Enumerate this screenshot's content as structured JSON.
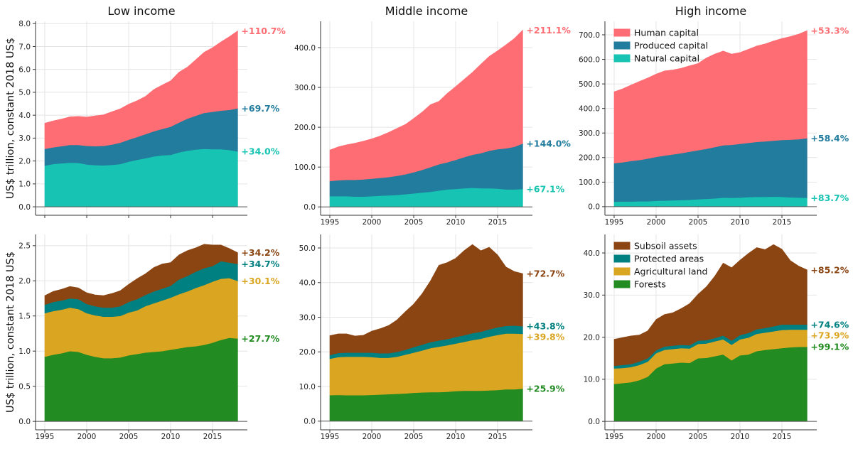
{
  "chart_data": [
    {
      "type": "area",
      "stacked": true,
      "title": "Low income",
      "ylabel": "US$ trillion, constant 2018 US$",
      "x": [
        1995,
        1996,
        1997,
        1998,
        1999,
        2000,
        2001,
        2002,
        2003,
        2004,
        2005,
        2006,
        2007,
        2008,
        2009,
        2010,
        2011,
        2012,
        2013,
        2014,
        2015,
        2016,
        2017,
        2018
      ],
      "xticks": [
        1995,
        2000,
        2005,
        2010,
        2015
      ],
      "show_xtick_labels": false,
      "yticks": [
        0,
        1,
        2,
        3,
        4,
        5,
        6,
        7,
        8
      ],
      "ytick_labels": [
        "0.0",
        "1.0",
        "2.0",
        "3.0",
        "4.0",
        "5.0",
        "6.0",
        "7.0",
        "8.0"
      ],
      "ylim": [
        -0.37,
        8.1
      ],
      "grid": true,
      "legend": null,
      "series": [
        {
          "name": "Natural capital",
          "color": "#17c3b2",
          "end_label": "+34.0%",
          "values": [
            1.8,
            1.87,
            1.9,
            1.93,
            1.92,
            1.85,
            1.82,
            1.81,
            1.83,
            1.87,
            1.97,
            2.05,
            2.12,
            2.2,
            2.25,
            2.27,
            2.38,
            2.45,
            2.5,
            2.53,
            2.52,
            2.52,
            2.48,
            2.42
          ]
        },
        {
          "name": "Produced capital",
          "color": "#227c9d",
          "end_label": "+69.7%",
          "values": [
            0.73,
            0.73,
            0.75,
            0.77,
            0.78,
            0.81,
            0.83,
            0.85,
            0.89,
            0.93,
            0.96,
            1.0,
            1.05,
            1.1,
            1.15,
            1.23,
            1.3,
            1.4,
            1.48,
            1.57,
            1.63,
            1.68,
            1.75,
            1.88
          ]
        },
        {
          "name": "Human capital",
          "color": "#fe6d73",
          "end_label": "+110.7%",
          "values": [
            1.12,
            1.15,
            1.18,
            1.23,
            1.25,
            1.26,
            1.32,
            1.36,
            1.43,
            1.48,
            1.55,
            1.58,
            1.65,
            1.82,
            1.92,
            2.0,
            2.2,
            2.25,
            2.44,
            2.65,
            2.8,
            3.0,
            3.2,
            3.38
          ]
        }
      ]
    },
    {
      "type": "area",
      "stacked": true,
      "title": "Middle income",
      "x": [
        1995,
        1996,
        1997,
        1998,
        1999,
        2000,
        2001,
        2002,
        2003,
        2004,
        2005,
        2006,
        2007,
        2008,
        2009,
        2010,
        2011,
        2012,
        2013,
        2014,
        2015,
        2016,
        2017,
        2018
      ],
      "xticks": [
        1995,
        2000,
        2005,
        2010,
        2015
      ],
      "show_xtick_labels": true,
      "yticks": [
        0,
        100,
        200,
        300,
        400
      ],
      "ytick_labels": [
        "0.0",
        "100.0",
        "200.0",
        "300.0",
        "400.0"
      ],
      "ylim": [
        -21,
        466
      ],
      "grid": true,
      "legend": null,
      "series": [
        {
          "name": "Natural capital",
          "color": "#17c3b2",
          "end_label": "+67.1%",
          "values": [
            27,
            27,
            27,
            26,
            26,
            27,
            28,
            29,
            30,
            32,
            34,
            36,
            38,
            41,
            44,
            45,
            47,
            48,
            47,
            47,
            46,
            44,
            44,
            45
          ]
        },
        {
          "name": "Produced capital",
          "color": "#227c9d",
          "end_label": "+144.0%",
          "values": [
            38,
            40,
            41,
            42,
            43,
            44,
            45,
            46,
            48,
            50,
            53,
            57,
            62,
            66,
            68,
            73,
            78,
            83,
            88,
            94,
            99,
            103,
            107,
            114
          ]
        },
        {
          "name": "Human capital",
          "color": "#fe6d73",
          "end_label": "+211.1%",
          "values": [
            78,
            84,
            88,
            92,
            96,
            100,
            105,
            112,
            119,
            125,
            135,
            145,
            157,
            158,
            173,
            184,
            195,
            207,
            223,
            237,
            247,
            260,
            272,
            285
          ]
        }
      ]
    },
    {
      "type": "area",
      "stacked": true,
      "title": "High income",
      "x": [
        1995,
        1996,
        1997,
        1998,
        1999,
        2000,
        2001,
        2002,
        2003,
        2004,
        2005,
        2006,
        2007,
        2008,
        2009,
        2010,
        2011,
        2012,
        2013,
        2014,
        2015,
        2016,
        2017,
        2018
      ],
      "xticks": [
        1995,
        2000,
        2005,
        2010,
        2015
      ],
      "show_xtick_labels": true,
      "yticks": [
        0,
        100,
        200,
        300,
        400,
        500,
        600,
        700
      ],
      "ytick_labels": [
        "0.0",
        "100.0",
        "200.0",
        "300.0",
        "400.0",
        "500.0",
        "600.0",
        "700.0"
      ],
      "ylim": [
        -35,
        755
      ],
      "grid": true,
      "legend": "upper-left",
      "series": [
        {
          "name": "Natural capital",
          "color": "#17c3b2",
          "end_label": "+83.7%",
          "values": [
            20,
            21,
            21,
            22,
            22,
            24,
            25,
            26,
            27,
            28,
            30,
            32,
            34,
            37,
            36,
            37,
            39,
            40,
            40,
            41,
            40,
            38,
            37,
            36
          ]
        },
        {
          "name": "Produced capital",
          "color": "#227c9d",
          "end_label": "+58.4%",
          "values": [
            157,
            160,
            165,
            168,
            174,
            179,
            183,
            187,
            191,
            196,
            200,
            204,
            209,
            213,
            216,
            219,
            221,
            224,
            226,
            228,
            232,
            235,
            238,
            243
          ]
        },
        {
          "name": "Human capital",
          "color": "#fe6d73",
          "end_label": "+53.3%",
          "values": [
            291,
            299,
            309,
            320,
            328,
            337,
            345,
            344,
            346,
            350,
            353,
            370,
            379,
            384,
            370,
            372,
            381,
            391,
            397,
            406,
            413,
            420,
            428,
            438
          ]
        }
      ]
    },
    {
      "type": "area",
      "stacked": true,
      "title": "",
      "ylabel": "US$ trillion, constant 2018 US$",
      "x": [
        1995,
        1996,
        1997,
        1998,
        1999,
        2000,
        2001,
        2002,
        2003,
        2004,
        2005,
        2006,
        2007,
        2008,
        2009,
        2010,
        2011,
        2012,
        2013,
        2014,
        2015,
        2016,
        2017,
        2018
      ],
      "xticks": [
        1995,
        2000,
        2005,
        2010,
        2015
      ],
      "show_xtick_labels": true,
      "yticks": [
        0,
        0.5,
        1,
        1.5,
        2,
        2.5
      ],
      "ytick_labels": [
        "0.0",
        "0.5",
        "1.0",
        "1.5",
        "2.0",
        "2.5"
      ],
      "ylim": [
        -0.12,
        2.66
      ],
      "grid": true,
      "legend": null,
      "series": [
        {
          "name": "Forests",
          "color": "#228b22",
          "end_label": "+27.7%",
          "values": [
            0.92,
            0.95,
            0.97,
            1.0,
            0.99,
            0.95,
            0.92,
            0.9,
            0.9,
            0.91,
            0.94,
            0.96,
            0.98,
            0.99,
            1.0,
            1.02,
            1.04,
            1.06,
            1.07,
            1.09,
            1.12,
            1.16,
            1.19,
            1.18
          ]
        },
        {
          "name": "Agricultural land",
          "color": "#daa520",
          "end_label": "+30.1%",
          "values": [
            0.62,
            0.62,
            0.62,
            0.62,
            0.61,
            0.59,
            0.59,
            0.59,
            0.59,
            0.59,
            0.61,
            0.62,
            0.66,
            0.69,
            0.72,
            0.74,
            0.77,
            0.79,
            0.83,
            0.85,
            0.87,
            0.87,
            0.85,
            0.82
          ]
        },
        {
          "name": "Protected areas",
          "color": "#008080",
          "end_label": "+34.7%",
          "values": [
            0.12,
            0.13,
            0.13,
            0.13,
            0.14,
            0.13,
            0.13,
            0.13,
            0.13,
            0.14,
            0.15,
            0.16,
            0.16,
            0.17,
            0.17,
            0.17,
            0.21,
            0.22,
            0.23,
            0.24,
            0.22,
            0.25,
            0.22,
            0.24
          ]
        },
        {
          "name": "Subsoil assets",
          "color": "#8b4513",
          "end_label": "+34.2%",
          "values": [
            0.13,
            0.15,
            0.16,
            0.17,
            0.16,
            0.16,
            0.16,
            0.17,
            0.2,
            0.22,
            0.25,
            0.29,
            0.3,
            0.34,
            0.35,
            0.33,
            0.35,
            0.36,
            0.34,
            0.34,
            0.3,
            0.23,
            0.2,
            0.16
          ]
        }
      ]
    },
    {
      "type": "area",
      "stacked": true,
      "title": "",
      "x": [
        1995,
        1996,
        1997,
        1998,
        1999,
        2000,
        2001,
        2002,
        2003,
        2004,
        2005,
        2006,
        2007,
        2008,
        2009,
        2010,
        2011,
        2012,
        2013,
        2014,
        2015,
        2016,
        2017,
        2018
      ],
      "xticks": [
        1995,
        2000,
        2005,
        2010,
        2015
      ],
      "show_xtick_labels": true,
      "yticks": [
        0,
        10,
        20,
        30,
        40,
        50
      ],
      "ytick_labels": [
        "0.0",
        "10.0",
        "20.0",
        "30.0",
        "40.0",
        "50.0"
      ],
      "ylim": [
        -2.5,
        53.9
      ],
      "grid": true,
      "legend": null,
      "series": [
        {
          "name": "Forests",
          "color": "#228b22",
          "end_label": "+25.9%",
          "values": [
            7.5,
            7.6,
            7.5,
            7.5,
            7.5,
            7.6,
            7.7,
            7.8,
            7.9,
            8.0,
            8.2,
            8.3,
            8.4,
            8.4,
            8.5,
            8.7,
            8.8,
            8.8,
            8.8,
            8.9,
            9.0,
            9.2,
            9.2,
            9.4
          ]
        },
        {
          "name": "Agricultural land",
          "color": "#daa520",
          "end_label": "+39.8%",
          "values": [
            10.5,
            10.9,
            11.1,
            11.1,
            11.1,
            10.9,
            10.6,
            10.5,
            10.7,
            11.2,
            11.6,
            12.1,
            12.7,
            13.1,
            13.4,
            13.7,
            14.1,
            14.6,
            15.0,
            15.5,
            15.9,
            16.1,
            16.1,
            15.8
          ]
        },
        {
          "name": "Protected areas",
          "color": "#008080",
          "end_label": "+43.8%",
          "values": [
            1.1,
            1.2,
            1.2,
            1.2,
            1.2,
            1.3,
            1.3,
            1.3,
            1.4,
            1.4,
            1.6,
            1.7,
            1.7,
            1.8,
            1.8,
            1.9,
            1.9,
            2.0,
            2.0,
            2.1,
            2.2,
            2.2,
            2.3,
            2.2
          ]
        },
        {
          "name": "Subsoil assets",
          "color": "#8b4513",
          "end_label": "+72.7%",
          "values": [
            5.6,
            5.5,
            5.4,
            4.8,
            5.0,
            6.2,
            7.1,
            8.0,
            9.2,
            11.0,
            12.4,
            14.7,
            17.7,
            21.7,
            22.1,
            22.7,
            24.4,
            25.6,
            23.4,
            23.7,
            20.9,
            17.0,
            15.6,
            15.2
          ]
        }
      ]
    },
    {
      "type": "area",
      "stacked": true,
      "title": "",
      "x": [
        1995,
        1996,
        1997,
        1998,
        1999,
        2000,
        2001,
        2002,
        2003,
        2004,
        2005,
        2006,
        2007,
        2008,
        2009,
        2010,
        2011,
        2012,
        2013,
        2014,
        2015,
        2016,
        2017,
        2018
      ],
      "xticks": [
        1995,
        2000,
        2005,
        2010,
        2015
      ],
      "show_xtick_labels": true,
      "yticks": [
        0,
        10,
        20,
        30,
        40
      ],
      "ytick_labels": [
        "0.0",
        "10.0",
        "20.0",
        "30.0",
        "40.0"
      ],
      "ylim": [
        -2.0,
        44.4
      ],
      "grid": true,
      "legend": "upper-left",
      "series": [
        {
          "name": "Forests",
          "color": "#228b22",
          "end_label": "+99.1%",
          "values": [
            8.9,
            9.1,
            9.3,
            9.8,
            10.6,
            12.6,
            13.6,
            13.8,
            14.0,
            13.9,
            15.0,
            15.1,
            15.5,
            15.9,
            14.5,
            15.7,
            15.9,
            16.7,
            17.0,
            17.2,
            17.4,
            17.6,
            17.7,
            17.7
          ]
        },
        {
          "name": "Agricultural land",
          "color": "#daa520",
          "end_label": "+73.9%",
          "values": [
            3.7,
            3.6,
            3.6,
            3.6,
            3.6,
            3.6,
            3.4,
            3.4,
            3.4,
            3.4,
            3.4,
            3.4,
            3.5,
            3.6,
            3.7,
            3.8,
            4.0,
            4.1,
            4.1,
            4.2,
            4.3,
            4.2,
            4.1,
            4.1
          ]
        },
        {
          "name": "Protected areas",
          "color": "#008080",
          "end_label": "+74.6%",
          "values": [
            0.6,
            0.7,
            0.7,
            0.8,
            0.8,
            0.7,
            0.8,
            0.8,
            0.8,
            0.8,
            0.8,
            0.8,
            0.8,
            0.9,
            1.0,
            1.0,
            1.1,
            1.1,
            1.1,
            1.2,
            1.3,
            1.2,
            1.2,
            1.2
          ]
        },
        {
          "name": "Subsoil assets",
          "color": "#8b4513",
          "end_label": "+85.2%",
          "values": [
            6.3,
            6.5,
            6.7,
            6.3,
            6.5,
            7.3,
            7.6,
            7.8,
            8.6,
            9.9,
            11.0,
            12.7,
            14.7,
            17.2,
            17.3,
            17.8,
            18.9,
            19.4,
            18.6,
            19.4,
            17.9,
            15.2,
            13.9,
            13.0
          ]
        }
      ]
    }
  ]
}
